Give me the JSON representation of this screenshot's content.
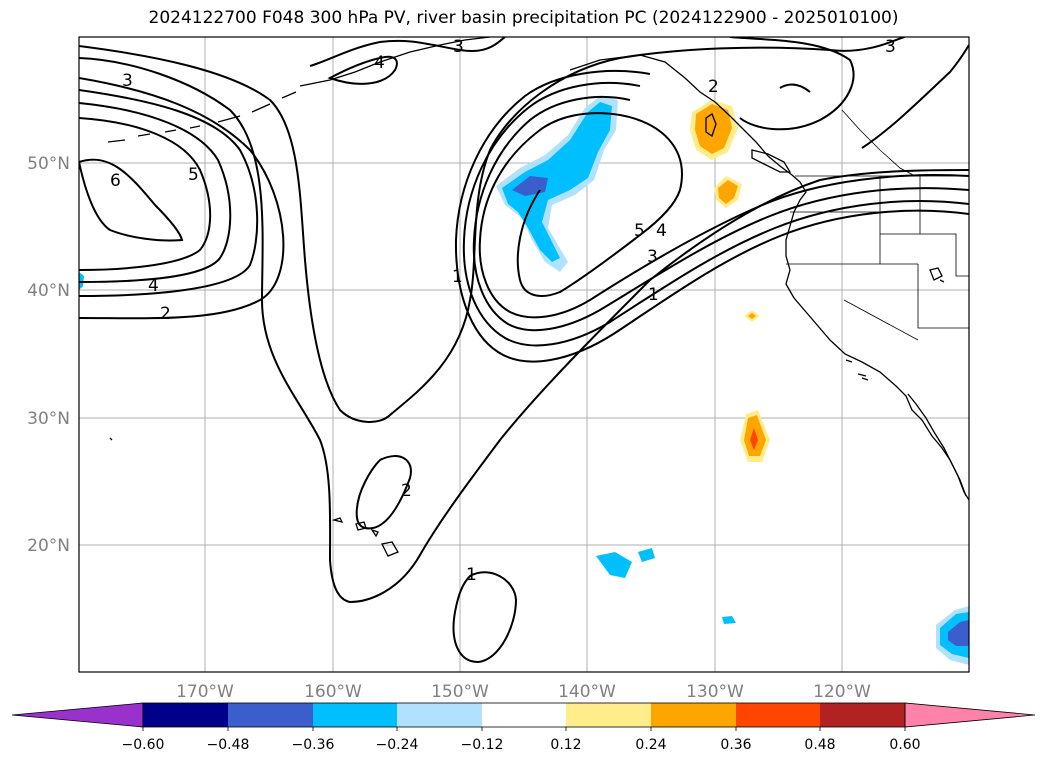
{
  "title": "2024122700 F048 300 hPa PV, river basin precipitation PC (2024122900 - 2025010100)",
  "lat_labels": [
    "50°N",
    "40°N",
    "30°N",
    "20°N"
  ],
  "lon_labels": [
    "170°W",
    "160°W",
    "150°W",
    "140°W",
    "130°W",
    "120°W"
  ],
  "contour_labels": [
    "3",
    "3",
    "3",
    "4",
    "2",
    "6",
    "5",
    "4",
    "2",
    "1",
    "5",
    "4",
    "3",
    "1",
    "2",
    "1"
  ],
  "colorbar": {
    "tick_labels": [
      "−0.60",
      "−0.48",
      "−0.36",
      "−0.24",
      "−0.12",
      "0.12",
      "0.24",
      "0.36",
      "0.48",
      "0.60"
    ],
    "colors": [
      "#9932cc",
      "#00008b",
      "#3a5fcd",
      "#00bfff",
      "#b0e2ff",
      "#ffffff",
      "#ffec8b",
      "#ffa500",
      "#ff4500",
      "#b22222",
      "#ff82ab"
    ]
  },
  "shading_colors": {
    "negative_light": "#b0e2ff",
    "negative_mid": "#00bfff",
    "negative_strong": "#3a5fcd",
    "positive_light": "#ffec8b",
    "positive_mid": "#ffa500",
    "positive_strong": "#ff4500"
  }
}
